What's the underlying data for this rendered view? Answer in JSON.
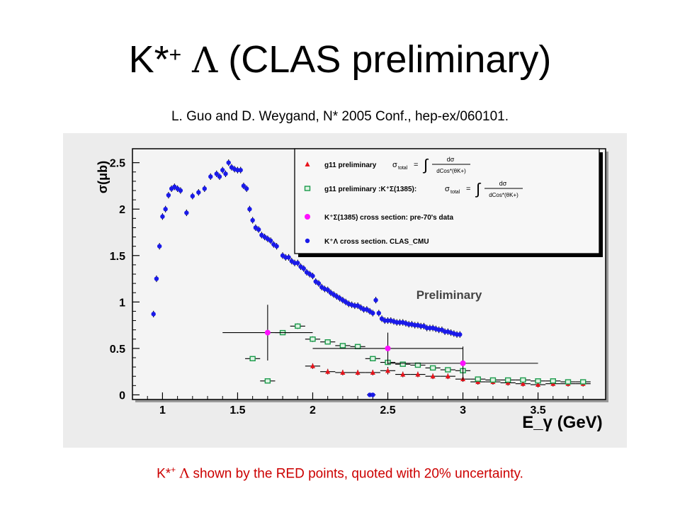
{
  "slide": {
    "title_pre": "K*",
    "title_sup": "+",
    "title_sym": "Λ",
    "title_post": "(CLAS preliminary)",
    "citation": "L. Guo and D. Weygand, N* 2005 Conf., hep-ex/060101.",
    "caption_pre": "K*",
    "caption_sup": "+",
    "caption_sym": "Λ",
    "caption_post": "shown by the RED points, quoted with 20% uncertainty."
  },
  "chart_data": {
    "type": "scatter",
    "xlabel": "E_γ (GeV)",
    "ylabel": "σ(μb)",
    "xlim": [
      0.8,
      3.95
    ],
    "ylim": [
      -0.05,
      2.65
    ],
    "xticks": [
      1,
      1.5,
      2,
      2.5,
      3,
      3.5
    ],
    "yticks": [
      0,
      0.5,
      1,
      1.5,
      2,
      2.5
    ],
    "grid": false,
    "legend_position": "top-right",
    "annotation": "Preliminary",
    "colors": {
      "red": "#e8141c",
      "green": "#1a9a4a",
      "magenta": "#ff10ff",
      "blue": "#1a1ae8",
      "plot_bg": "#f4f4f4"
    },
    "series": [
      {
        "name": "g11 preliminary",
        "legend_text": "g11 preliminary",
        "legend_formula": true,
        "marker": "triangle",
        "color": "red",
        "x": [
          2.0,
          2.1,
          2.2,
          2.3,
          2.4,
          2.5,
          2.6,
          2.7,
          2.8,
          2.9,
          3.0,
          3.1,
          3.2,
          3.3,
          3.4,
          3.5,
          3.6,
          3.7,
          3.8
        ],
        "y": [
          0.31,
          0.25,
          0.24,
          0.24,
          0.24,
          0.26,
          0.22,
          0.22,
          0.2,
          0.2,
          0.17,
          0.14,
          0.14,
          0.13,
          0.12,
          0.11,
          0.12,
          0.12,
          0.12
        ],
        "yerr": [
          0.03,
          0.03,
          0.03,
          0.03,
          0.03,
          0.04,
          0.03,
          0.03,
          0.03,
          0.03,
          0.03,
          0.03,
          0.03,
          0.03,
          0.03,
          0.03,
          0.03,
          0.03,
          0.03
        ],
        "xerr": 0.05
      },
      {
        "name": "g11 preliminary :K⁺Σ(1385)",
        "legend_text": "g11 preliminary :K⁺Σ(1385):",
        "legend_formula": true,
        "marker": "square",
        "color": "green",
        "x": [
          1.6,
          1.7,
          1.8,
          1.9,
          2.0,
          2.1,
          2.2,
          2.3,
          2.4,
          2.5,
          2.6,
          2.7,
          2.8,
          2.9,
          3.0,
          3.1,
          3.2,
          3.3,
          3.4,
          3.5,
          3.6,
          3.7,
          3.8
        ],
        "y": [
          0.39,
          0.15,
          0.67,
          0.74,
          0.6,
          0.57,
          0.53,
          0.52,
          0.39,
          0.35,
          0.33,
          0.32,
          0.29,
          0.27,
          0.26,
          0.17,
          0.16,
          0.16,
          0.16,
          0.15,
          0.15,
          0.14,
          0.14
        ],
        "yerr": [
          0.02,
          0.02,
          0.02,
          0.03,
          0.03,
          0.02,
          0.02,
          0.02,
          0.02,
          0.02,
          0.02,
          0.02,
          0.02,
          0.02,
          0.02,
          0.02,
          0.02,
          0.02,
          0.02,
          0.02,
          0.02,
          0.02,
          0.02
        ],
        "xerr": 0.05
      },
      {
        "name": "K⁺Σ(1385) cross section: pre-70's data",
        "legend_text": "K⁺Σ(1385) cross section: pre-70's data",
        "marker": "circle-open",
        "color": "magenta",
        "x": [
          1.7,
          2.5,
          3.0
        ],
        "y": [
          0.67,
          0.5,
          0.34
        ],
        "yerr": [
          0.3,
          0.17,
          0.18
        ],
        "xerr_lo": [
          0.3,
          0.5,
          0.5
        ],
        "xerr_hi": [
          0.3,
          0.5,
          0.5
        ]
      },
      {
        "name": "K⁺Λ cross section. CLAS_CMU",
        "legend_text": "K⁺Λ cross section. CLAS_CMU",
        "marker": "star",
        "color": "blue",
        "x": [
          0.94,
          0.96,
          0.98,
          1.0,
          1.02,
          1.04,
          1.06,
          1.08,
          1.1,
          1.12,
          1.16,
          1.2,
          1.24,
          1.28,
          1.32,
          1.36,
          1.38,
          1.4,
          1.42,
          1.44,
          1.46,
          1.48,
          1.5,
          1.52,
          1.54,
          1.56,
          1.58,
          1.6,
          1.62,
          1.64,
          1.66,
          1.68,
          1.7,
          1.72,
          1.74,
          1.76,
          1.8,
          1.82,
          1.84,
          1.86,
          1.88,
          1.9,
          1.92,
          1.94,
          1.96,
          1.98,
          2.0,
          2.02,
          2.04,
          2.06,
          2.08,
          2.1,
          2.12,
          2.14,
          2.16,
          2.18,
          2.2,
          2.22,
          2.24,
          2.26,
          2.28,
          2.3,
          2.32,
          2.34,
          2.36,
          2.38,
          2.4,
          2.42,
          2.44,
          2.46,
          2.48,
          2.5,
          2.52,
          2.54,
          2.56,
          2.58,
          2.6,
          2.62,
          2.64,
          2.66,
          2.68,
          2.7,
          2.72,
          2.74,
          2.76,
          2.78,
          2.8,
          2.82,
          2.84,
          2.86,
          2.88,
          2.9,
          2.92,
          2.94,
          2.96,
          2.98
        ],
        "y": [
          0.87,
          1.25,
          1.6,
          1.92,
          2.0,
          2.15,
          2.22,
          2.24,
          2.22,
          2.2,
          1.96,
          2.14,
          2.18,
          2.22,
          2.35,
          2.38,
          2.35,
          2.42,
          2.38,
          2.5,
          2.45,
          2.43,
          2.42,
          2.42,
          2.25,
          2.22,
          2.0,
          1.88,
          1.8,
          1.78,
          1.72,
          1.7,
          1.68,
          1.66,
          1.62,
          1.6,
          1.5,
          1.48,
          1.48,
          1.44,
          1.42,
          1.42,
          1.38,
          1.36,
          1.32,
          1.3,
          1.28,
          1.22,
          1.2,
          1.16,
          1.14,
          1.13,
          1.1,
          1.08,
          1.06,
          1.04,
          1.02,
          1.0,
          0.98,
          0.97,
          0.96,
          0.96,
          0.94,
          0.92,
          0.92,
          0.9,
          0.88,
          1.02,
          0.88,
          0.82,
          0.8,
          0.8,
          0.8,
          0.79,
          0.78,
          0.78,
          0.78,
          0.77,
          0.76,
          0.76,
          0.75,
          0.75,
          0.74,
          0.74,
          0.72,
          0.72,
          0.72,
          0.71,
          0.7,
          0.7,
          0.68,
          0.68,
          0.67,
          0.66,
          0.65,
          0.65
        ],
        "yerr": 0.035,
        "xerr": 0.012
      }
    ],
    "extra_points": [
      {
        "series": "K⁺Λ cross section. CLAS_CMU",
        "x": 2.38,
        "y": 0.0
      },
      {
        "series": "K⁺Λ cross section. CLAS_CMU",
        "x": 2.4,
        "y": 0.0
      }
    ]
  }
}
